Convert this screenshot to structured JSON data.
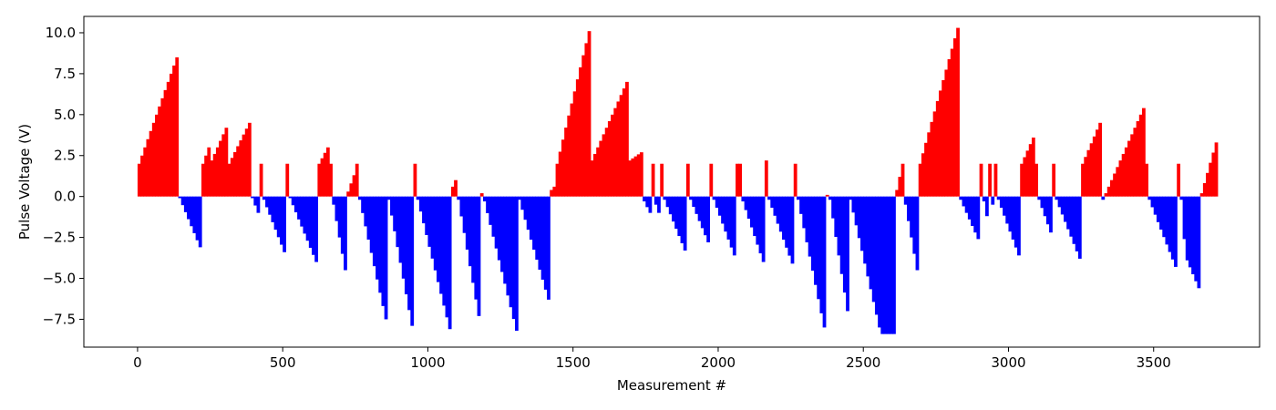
{
  "chart_data": {
    "type": "bar",
    "xlabel": "Measurement #",
    "ylabel": "Pulse Voltage (V)",
    "xlim": [
      -185,
      3865
    ],
    "ylim": [
      -9.2,
      11.0
    ],
    "x_ticks": [
      0,
      500,
      1000,
      1500,
      2000,
      2500,
      3000,
      3500
    ],
    "y_ticks": [
      -7.5,
      -5.0,
      -2.5,
      0.0,
      2.5,
      5.0,
      7.5,
      10.0
    ],
    "y_tick_labels": [
      "−7.5",
      "−5.0",
      "−2.5",
      "0.0",
      "2.5",
      "5.0",
      "7.5",
      "10.0"
    ],
    "grid": false,
    "legend": "none",
    "colors": {
      "positive": "#ff0000",
      "negative": "#0000ff"
    },
    "x_step": 10,
    "segments": [
      [
        0,
        140,
        2.0,
        8.5
      ],
      [
        140,
        220,
        -0.1,
        -3.1
      ],
      [
        220,
        250,
        2.0,
        3.0
      ],
      [
        250,
        310,
        2.2,
        4.2
      ],
      [
        310,
        390,
        2.0,
        4.5
      ],
      [
        390,
        420,
        -0.1,
        -1.0
      ],
      [
        420,
        430,
        2.0,
        2.0
      ],
      [
        430,
        510,
        -0.2,
        -3.4
      ],
      [
        510,
        520,
        2.0,
        2.0
      ],
      [
        520,
        620,
        -0.1,
        -4.0
      ],
      [
        620,
        660,
        2.0,
        3.0
      ],
      [
        660,
        670,
        2.0,
        2.0
      ],
      [
        670,
        720,
        -0.5,
        -4.5
      ],
      [
        720,
        750,
        0.3,
        1.3
      ],
      [
        750,
        760,
        2.0,
        2.0
      ],
      [
        760,
        860,
        -0.2,
        -7.5
      ],
      [
        860,
        950,
        -0.2,
        -7.9
      ],
      [
        950,
        960,
        2.0,
        2.0
      ],
      [
        960,
        1080,
        -0.2,
        -8.1
      ],
      [
        1080,
        1100,
        0.6,
        1.0
      ],
      [
        1100,
        1180,
        -0.2,
        -7.3
      ],
      [
        1180,
        1190,
        0.2,
        0.2
      ],
      [
        1190,
        1310,
        -0.3,
        -8.2
      ],
      [
        1310,
        1420,
        -0.2,
        -6.3
      ],
      [
        1420,
        1440,
        0.4,
        0.6
      ],
      [
        1440,
        1560,
        2.0,
        10.1
      ],
      [
        1560,
        1690,
        2.2,
        7.0
      ],
      [
        1690,
        1740,
        2.2,
        2.7
      ],
      [
        1740,
        1770,
        -0.3,
        -1.0
      ],
      [
        1770,
        1780,
        2.0,
        2.0
      ],
      [
        1780,
        1800,
        -0.5,
        -1.0
      ],
      [
        1800,
        1810,
        2.0,
        2.0
      ],
      [
        1810,
        1890,
        -0.2,
        -3.3
      ],
      [
        1890,
        1900,
        2.0,
        2.0
      ],
      [
        1900,
        1970,
        -0.2,
        -2.8
      ],
      [
        1970,
        1980,
        2.0,
        2.0
      ],
      [
        1980,
        2060,
        -0.2,
        -3.6
      ],
      [
        2060,
        2080,
        2.0,
        2.0
      ],
      [
        2080,
        2160,
        -0.3,
        -4.0
      ],
      [
        2160,
        2170,
        2.2,
        2.2
      ],
      [
        2170,
        2260,
        -0.2,
        -4.1
      ],
      [
        2260,
        2270,
        2.0,
        2.0
      ],
      [
        2270,
        2370,
        -0.2,
        -8.0
      ],
      [
        2370,
        2380,
        0.1,
        0.1
      ],
      [
        2380,
        2450,
        -0.2,
        -7.0
      ],
      [
        2450,
        2560,
        -0.2,
        -8.0
      ],
      [
        2560,
        2610,
        -8.4,
        -8.4
      ],
      [
        2610,
        2630,
        0.4,
        1.2
      ],
      [
        2630,
        2640,
        2.0,
        2.0
      ],
      [
        2640,
        2690,
        -0.5,
        -4.5
      ],
      [
        2690,
        2830,
        2.0,
        10.3
      ],
      [
        2830,
        2900,
        -0.2,
        -2.6
      ],
      [
        2900,
        2910,
        2.0,
        2.0
      ],
      [
        2910,
        2930,
        -0.3,
        -1.2
      ],
      [
        2930,
        2940,
        2.0,
        2.0
      ],
      [
        2940,
        2950,
        -0.5,
        -0.5
      ],
      [
        2950,
        2960,
        2.0,
        2.0
      ],
      [
        2960,
        3040,
        -0.2,
        -3.6
      ],
      [
        3040,
        3090,
        2.0,
        3.6
      ],
      [
        3090,
        3100,
        2.0,
        2.0
      ],
      [
        3100,
        3150,
        -0.2,
        -2.2
      ],
      [
        3150,
        3160,
        2.0,
        2.0
      ],
      [
        3160,
        3250,
        -0.2,
        -3.8
      ],
      [
        3250,
        3320,
        2.0,
        4.5
      ],
      [
        3320,
        3330,
        -0.2,
        -0.2
      ],
      [
        3330,
        3470,
        0.2,
        5.4
      ],
      [
        3470,
        3480,
        2.0,
        2.0
      ],
      [
        3480,
        3580,
        -0.2,
        -4.3
      ],
      [
        3580,
        3590,
        2.0,
        2.0
      ],
      [
        3590,
        3610,
        -0.2,
        -2.6
      ],
      [
        3610,
        3660,
        -3.9,
        -5.6
      ],
      [
        3660,
        3720,
        0.2,
        3.3
      ]
    ]
  }
}
